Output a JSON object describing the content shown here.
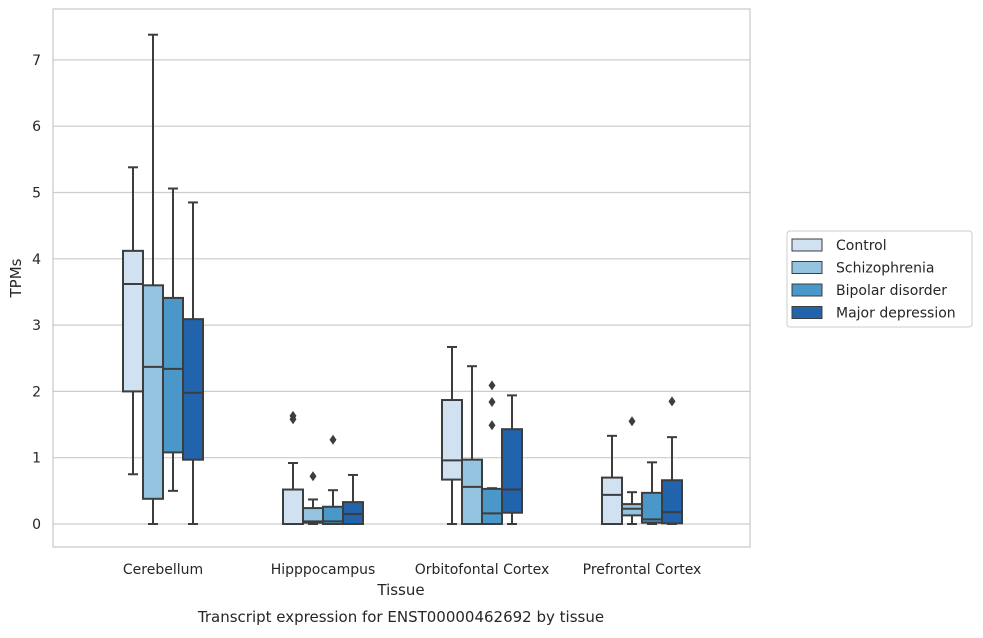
{
  "chart_data": {
    "type": "box",
    "title": "",
    "caption": "Transcript expression for ENST00000462692 by tissue",
    "xlabel": "Tissue",
    "ylabel": "TPMs",
    "ylim": [
      -0.35,
      7.75
    ],
    "yticks": [
      0,
      1,
      2,
      3,
      4,
      5,
      6,
      7
    ],
    "grid": "horizontal",
    "legend_position": "right",
    "categories": [
      "Cerebellum",
      "Hipppocampus",
      "Orbitofontal Cortex",
      "Prefrontal Cortex"
    ],
    "series": [
      {
        "name": "Control",
        "color": "#d0e1f2",
        "boxes": [
          {
            "whislo": 0.75,
            "q1": 2.0,
            "med": 3.62,
            "q3": 4.12,
            "whishi": 5.38,
            "fliers": []
          },
          {
            "whislo": 0.0,
            "q1": 0.0,
            "med": 0.0,
            "q3": 0.52,
            "whishi": 0.92,
            "fliers": [
              1.58,
              1.63
            ]
          },
          {
            "whislo": 0.0,
            "q1": 0.67,
            "med": 0.96,
            "q3": 1.87,
            "whishi": 2.67,
            "fliers": []
          },
          {
            "whislo": 0.0,
            "q1": 0.0,
            "med": 0.44,
            "q3": 0.7,
            "whishi": 1.33,
            "fliers": []
          }
        ]
      },
      {
        "name": "Schizophrenia",
        "color": "#94c4df",
        "boxes": [
          {
            "whislo": 0.0,
            "q1": 0.38,
            "med": 2.37,
            "q3": 3.6,
            "whishi": 7.38,
            "fliers": []
          },
          {
            "whislo": 0.0,
            "q1": 0.02,
            "med": 0.04,
            "q3": 0.24,
            "whishi": 0.37,
            "fliers": [
              0.72
            ]
          },
          {
            "whislo": 0.0,
            "q1": 0.0,
            "med": 0.56,
            "q3": 0.97,
            "whishi": 2.38,
            "fliers": []
          },
          {
            "whislo": 0.0,
            "q1": 0.13,
            "med": 0.23,
            "q3": 0.3,
            "whishi": 0.48,
            "fliers": [
              1.55
            ]
          }
        ]
      },
      {
        "name": "Bipolar disorder",
        "color": "#4a98c9",
        "boxes": [
          {
            "whislo": 0.5,
            "q1": 1.08,
            "med": 2.34,
            "q3": 3.41,
            "whishi": 5.06,
            "fliers": []
          },
          {
            "whislo": 0.0,
            "q1": 0.0,
            "med": 0.04,
            "q3": 0.26,
            "whishi": 0.51,
            "fliers": [
              1.27
            ]
          },
          {
            "whislo": 0.0,
            "q1": 0.0,
            "med": 0.16,
            "q3": 0.53,
            "whishi": 0.54,
            "fliers": [
              1.49,
              1.84,
              2.09
            ]
          },
          {
            "whislo": 0.0,
            "q1": 0.02,
            "med": 0.07,
            "q3": 0.47,
            "whishi": 0.93,
            "fliers": []
          }
        ]
      },
      {
        "name": "Major depression",
        "color": "#2164ab",
        "boxes": [
          {
            "whislo": 0.0,
            "q1": 0.97,
            "med": 1.98,
            "q3": 3.09,
            "whishi": 4.85,
            "fliers": []
          },
          {
            "whislo": 0.0,
            "q1": 0.0,
            "med": 0.15,
            "q3": 0.33,
            "whishi": 0.74,
            "fliers": []
          },
          {
            "whislo": 0.0,
            "q1": 0.17,
            "med": 0.52,
            "q3": 1.43,
            "whishi": 1.94,
            "fliers": []
          },
          {
            "whislo": 0.0,
            "q1": 0.01,
            "med": 0.18,
            "q3": 0.66,
            "whishi": 1.31,
            "fliers": [
              1.85
            ]
          }
        ]
      }
    ]
  }
}
